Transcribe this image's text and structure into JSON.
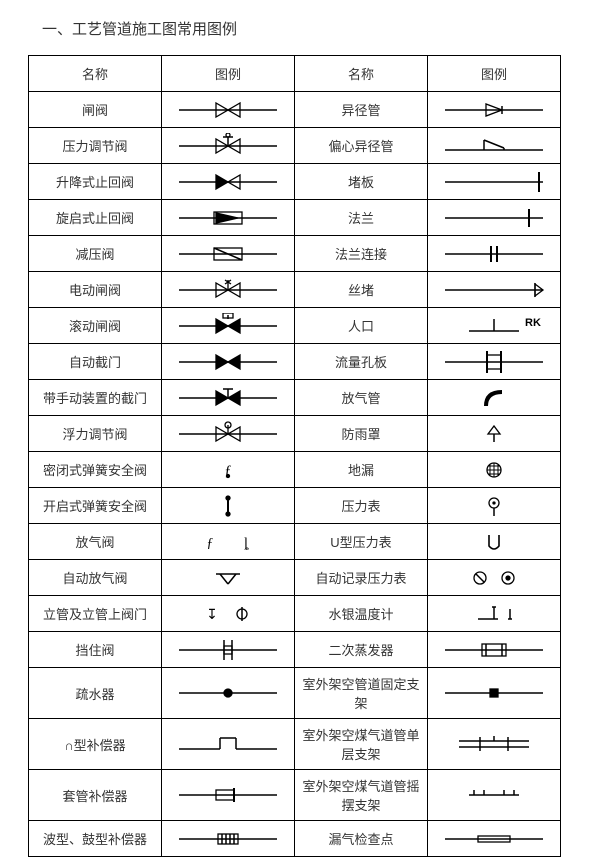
{
  "title": "一、工艺管道施工图常用图例",
  "headers": {
    "name": "名称",
    "symbol": "图例"
  },
  "rows": [
    {
      "left": "闸阀",
      "ls": "gate-valve",
      "right": "异径管",
      "rs": "reducer"
    },
    {
      "left": "压力调节阀",
      "ls": "pressure-reg",
      "right": "偏心异径管",
      "rs": "ecc-reducer"
    },
    {
      "left": "升降式止回阀",
      "ls": "lift-check",
      "right": "堵板",
      "rs": "blind"
    },
    {
      "left": "旋启式止回阀",
      "ls": "swing-check",
      "right": "法兰",
      "rs": "flange"
    },
    {
      "left": "减压阀",
      "ls": "reducing-valve",
      "right": "法兰连接",
      "rs": "flange-conn"
    },
    {
      "left": "电动闸阀",
      "ls": "motor-gate",
      "right": "丝堵",
      "rs": "plug"
    },
    {
      "left": "滚动闸阀",
      "ls": "roll-gate",
      "right": "人口",
      "rs": "manhole"
    },
    {
      "left": "自动截门",
      "ls": "auto-stop",
      "right": "流量孔板",
      "rs": "orifice"
    },
    {
      "left": "带手动装置的截门",
      "ls": "manual-stop",
      "right": "放气管",
      "rs": "vent-pipe"
    },
    {
      "left": "浮力调节阀",
      "ls": "float-valve",
      "right": "防雨罩",
      "rs": "rain-cap"
    },
    {
      "left": "密闭式弹簧安全阀",
      "ls": "closed-safety",
      "right": "地漏",
      "rs": "floor-drain"
    },
    {
      "left": "开启式弹簧安全阀",
      "ls": "open-safety",
      "right": "压力表",
      "rs": "pressure-gauge"
    },
    {
      "left": "放气阀",
      "ls": "vent-valve",
      "right": "U型压力表",
      "rs": "u-gauge"
    },
    {
      "left": "自动放气阀",
      "ls": "auto-vent",
      "right": "自动记录压力表",
      "rs": "recorder"
    },
    {
      "left": "立管及立管上阀门",
      "ls": "riser-valve",
      "right": "水银温度计",
      "rs": "hg-thermo"
    },
    {
      "left": "挡住阀",
      "ls": "block-valve",
      "right": "二次蒸发器",
      "rs": "evaporator"
    },
    {
      "left": "疏水器",
      "ls": "trap",
      "right": "室外架空管道固定支架",
      "rs": "fixed-support"
    },
    {
      "left": "∩型补偿器",
      "ls": "loop-comp",
      "right": "室外架空煤气道管单层支架",
      "rs": "single-support"
    },
    {
      "left": "套管补偿器",
      "ls": "sleeve-comp",
      "right": "室外架空煤气道管摇摆支架",
      "rs": "swing-support"
    },
    {
      "left": "波型、鼓型补偿器",
      "ls": "bellows-comp",
      "right": "漏气检查点",
      "rs": "leak-check"
    }
  ],
  "colors": {
    "line": "#000000",
    "border": "#000000",
    "bg": "#ffffff"
  }
}
